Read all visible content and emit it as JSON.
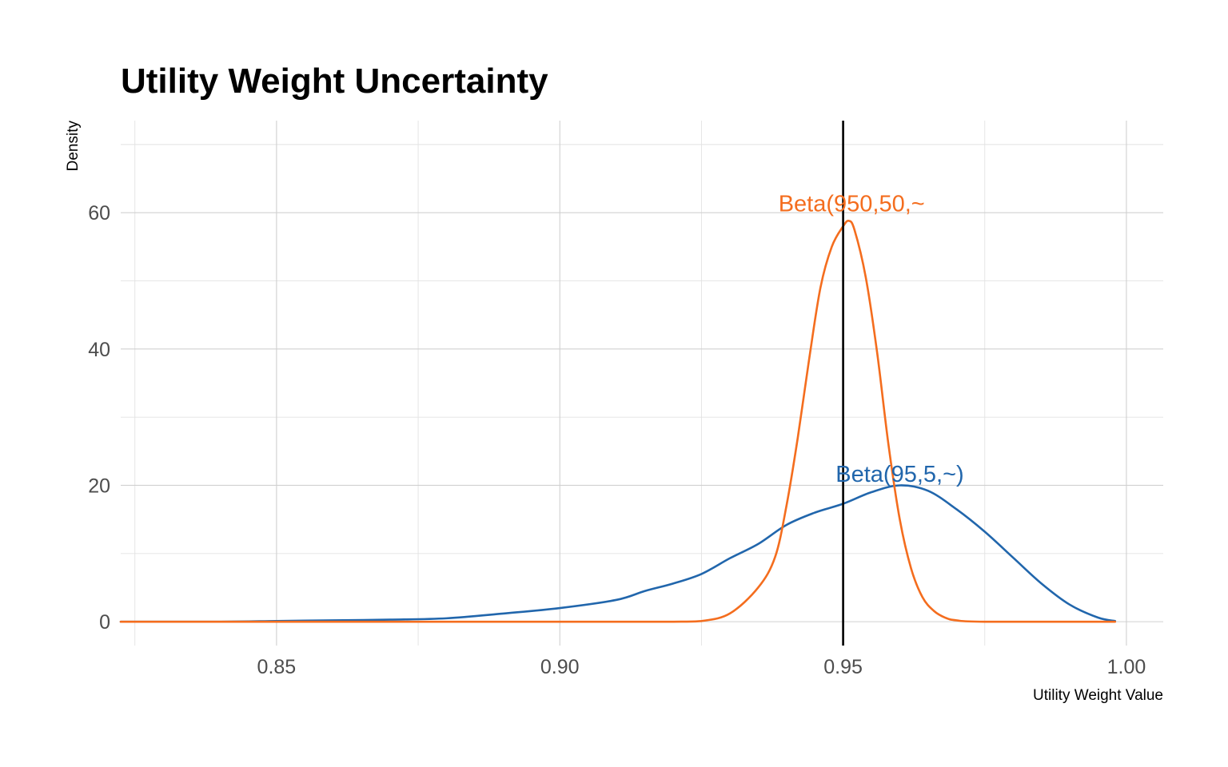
{
  "chart_data": {
    "type": "line",
    "title": "Utility Weight Uncertainty",
    "xlabel": "Utility Weight Value",
    "ylabel": "Density",
    "xlim": [
      0.8225,
      1.0065
    ],
    "ylim": [
      -3.5,
      73.5
    ],
    "x_ticks": [
      0.85,
      0.9,
      0.95,
      1.0
    ],
    "x_tick_labels": [
      "0.85",
      "0.90",
      "0.95",
      "1.00"
    ],
    "y_ticks": [
      0,
      20,
      40,
      60
    ],
    "y_tick_labels": [
      "0",
      "20",
      "40",
      "60"
    ],
    "grid": true,
    "legend": "none",
    "reference_line": {
      "x": 0.95,
      "color": "#000000"
    },
    "series": [
      {
        "name": "Beta(95,5,~)",
        "color": "#2166ac",
        "label_position": {
          "x": 0.96,
          "y": 20.5
        },
        "x": [
          0.8225,
          0.84,
          0.85,
          0.86,
          0.87,
          0.88,
          0.89,
          0.9,
          0.91,
          0.915,
          0.92,
          0.925,
          0.93,
          0.935,
          0.94,
          0.945,
          0.95,
          0.955,
          0.96,
          0.965,
          0.97,
          0.975,
          0.98,
          0.985,
          0.99,
          0.995,
          0.998
        ],
        "y": [
          0,
          0,
          0.1,
          0.2,
          0.3,
          0.5,
          1.2,
          2.0,
          3.2,
          4.5,
          5.6,
          7.0,
          9.3,
          11.4,
          14.2,
          16.0,
          17.3,
          19.0,
          20.0,
          19.2,
          16.5,
          13.2,
          9.4,
          5.6,
          2.5,
          0.6,
          0.1
        ]
      },
      {
        "name": "Beta(950,50,~",
        "color": "#f46d1e",
        "label_position": {
          "x": 0.9515,
          "y": 60.2
        },
        "x": [
          0.8225,
          0.9,
          0.92,
          0.925,
          0.93,
          0.935,
          0.938,
          0.94,
          0.942,
          0.944,
          0.946,
          0.948,
          0.95,
          0.951,
          0.952,
          0.954,
          0.956,
          0.958,
          0.96,
          0.962,
          0.964,
          0.966,
          0.968,
          0.97,
          0.975,
          0.998
        ],
        "y": [
          0,
          0,
          0,
          0.1,
          1.2,
          5.0,
          9.5,
          17.0,
          27.0,
          38.5,
          49.0,
          55.0,
          58.0,
          58.8,
          57.5,
          50.5,
          39.5,
          26.0,
          15.0,
          7.8,
          3.6,
          1.6,
          0.6,
          0.2,
          0,
          0
        ]
      }
    ]
  }
}
